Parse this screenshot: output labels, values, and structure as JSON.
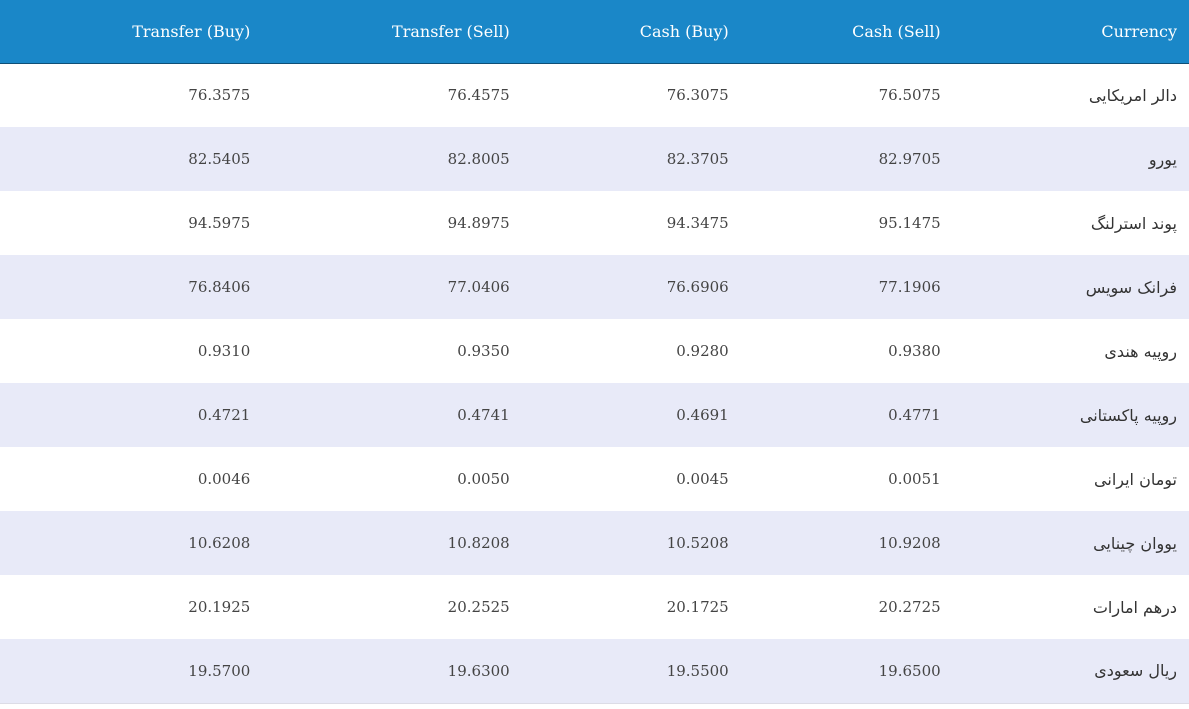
{
  "headers": {
    "transfer_buy": "Transfer (Buy)",
    "transfer_sell": "Transfer (Sell)",
    "cash_buy": "Cash (Buy)",
    "cash_sell": "Cash (Sell)",
    "currency": "Currency"
  },
  "rows": [
    {
      "currency": "دالر امریکایی",
      "transfer_buy": "76.3575",
      "transfer_sell": "76.4575",
      "cash_buy": "76.3075",
      "cash_sell": "76.5075"
    },
    {
      "currency": "یورو",
      "transfer_buy": "82.5405",
      "transfer_sell": "82.8005",
      "cash_buy": "82.3705",
      "cash_sell": "82.9705"
    },
    {
      "currency": "پوند استرلنگ",
      "transfer_buy": "94.5975",
      "transfer_sell": "94.8975",
      "cash_buy": "94.3475",
      "cash_sell": "95.1475"
    },
    {
      "currency": "فرانک سویس",
      "transfer_buy": "76.8406",
      "transfer_sell": "77.0406",
      "cash_buy": "76.6906",
      "cash_sell": "77.1906"
    },
    {
      "currency": "روپیه هندی",
      "transfer_buy": "0.9310",
      "transfer_sell": "0.9350",
      "cash_buy": "0.9280",
      "cash_sell": "0.9380"
    },
    {
      "currency": "روپیه پاکستانی",
      "transfer_buy": "0.4721",
      "transfer_sell": "0.4741",
      "cash_buy": "0.4691",
      "cash_sell": "0.4771"
    },
    {
      "currency": "تومان ایرانی",
      "transfer_buy": "0.0046",
      "transfer_sell": "0.0050",
      "cash_buy": "0.0045",
      "cash_sell": "0.0051"
    },
    {
      "currency": "یووان چینایی",
      "transfer_buy": "10.6208",
      "transfer_sell": "10.8208",
      "cash_buy": "10.5208",
      "cash_sell": "10.9208"
    },
    {
      "currency": "درهم امارات",
      "transfer_buy": "20.1925",
      "transfer_sell": "20.2525",
      "cash_buy": "20.1725",
      "cash_sell": "20.2725"
    },
    {
      "currency": "ریال سعودی",
      "transfer_buy": "19.5700",
      "transfer_sell": "19.6300",
      "cash_buy": "19.5500",
      "cash_sell": "19.6500"
    }
  ],
  "colors": {
    "header_background": "#1a87c8",
    "alt_row_background": "#e8eaf8"
  }
}
